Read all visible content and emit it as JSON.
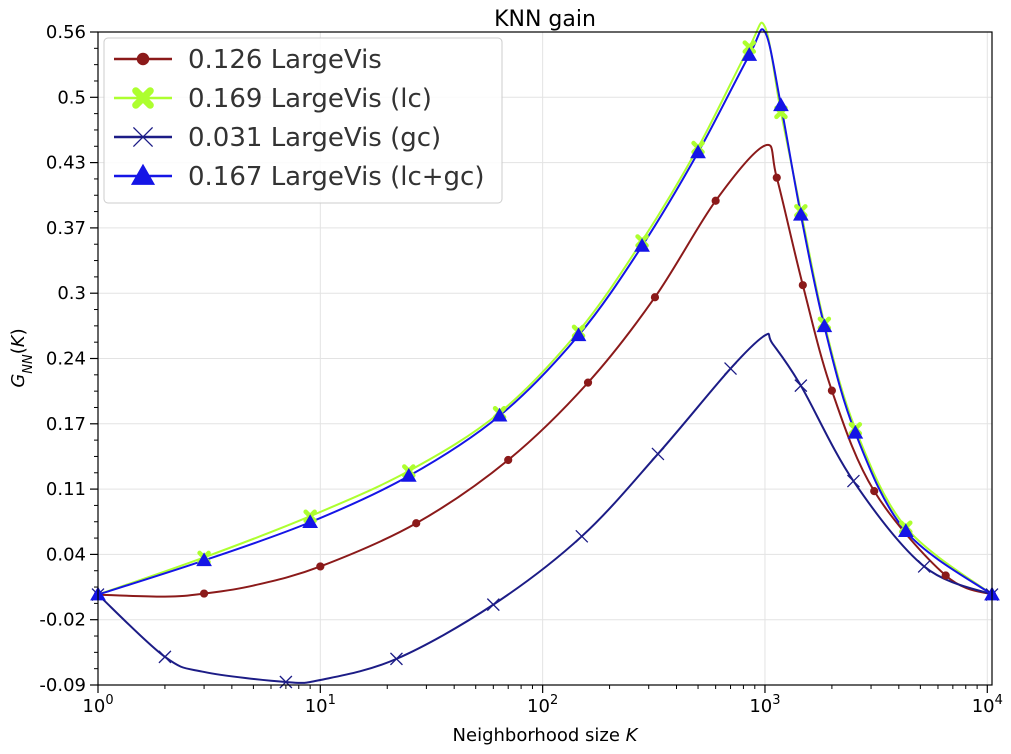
{
  "chart_data": {
    "type": "line",
    "title": "KNN gain",
    "xlabel": "Neighborhood size",
    "xlabel_var": "K",
    "ylabel": "G_NN(K)",
    "xscale": "log",
    "xlim": [
      1,
      10500
    ],
    "ylim": [
      -0.09,
      0.56
    ],
    "x_ticks": [
      {
        "value": 1,
        "base": "10",
        "exp": "0"
      },
      {
        "value": 10,
        "base": "10",
        "exp": "1"
      },
      {
        "value": 100,
        "base": "10",
        "exp": "2"
      },
      {
        "value": 1000,
        "base": "10",
        "exp": "3"
      },
      {
        "value": 10000,
        "base": "10",
        "exp": "4"
      }
    ],
    "y_ticks": [
      {
        "value": -0.09,
        "label": "-0.09"
      },
      {
        "value": -0.025,
        "label": "-0.02"
      },
      {
        "value": 0.04,
        "label": "0.04"
      },
      {
        "value": 0.105,
        "label": "0.11"
      },
      {
        "value": 0.17,
        "label": "0.17"
      },
      {
        "value": 0.235,
        "label": "0.24"
      },
      {
        "value": 0.3,
        "label": "0.3"
      },
      {
        "value": 0.365,
        "label": "0.37"
      },
      {
        "value": 0.43,
        "label": "0.43"
      },
      {
        "value": 0.495,
        "label": "0.5"
      },
      {
        "value": 0.56,
        "label": "0.56"
      }
    ],
    "grid": true,
    "legend_position": "top-left",
    "series": [
      {
        "name": "0.126 LargeVis",
        "color": "#8b1a1a",
        "marker": "circle",
        "x": [
          1,
          2,
          3,
          5,
          10,
          27,
          70,
          160,
          320,
          600,
          1000,
          1130,
          1480,
          2000,
          3100,
          6500,
          10500
        ],
        "y": [
          0,
          -0.002,
          0.001,
          0.009,
          0.028,
          0.071,
          0.134,
          0.211,
          0.296,
          0.392,
          0.447,
          0.415,
          0.308,
          0.203,
          0.103,
          0.019,
          0.0
        ],
        "markers": [
          [
            1,
            0
          ],
          [
            3,
            0.001
          ],
          [
            10,
            0.028
          ],
          [
            27,
            0.071
          ],
          [
            70,
            0.134
          ],
          [
            160,
            0.211
          ],
          [
            320,
            0.296
          ],
          [
            600,
            0.392
          ],
          [
            1130,
            0.415
          ],
          [
            1480,
            0.308
          ],
          [
            2000,
            0.203
          ],
          [
            3100,
            0.103
          ],
          [
            6500,
            0.019
          ],
          [
            10500,
            0.0
          ]
        ]
      },
      {
        "name": "0.169 LargeVis (lc)",
        "color": "#adff2f",
        "marker": "x-bold",
        "x": [
          1,
          3,
          9,
          25,
          64,
          145,
          280,
          500,
          850,
          1000,
          1180,
          1450,
          1850,
          2550,
          4300,
          10500
        ],
        "y": [
          0,
          0.037,
          0.078,
          0.123,
          0.181,
          0.262,
          0.352,
          0.445,
          0.545,
          0.565,
          0.48,
          0.382,
          0.27,
          0.165,
          0.067,
          0.0
        ],
        "markers": [
          [
            3,
            0.037
          ],
          [
            9,
            0.078
          ],
          [
            25,
            0.123
          ],
          [
            64,
            0.181
          ],
          [
            145,
            0.262
          ],
          [
            280,
            0.352
          ],
          [
            500,
            0.445
          ],
          [
            850,
            0.545
          ],
          [
            1180,
            0.48
          ],
          [
            1450,
            0.382
          ],
          [
            1850,
            0.27
          ],
          [
            2550,
            0.165
          ],
          [
            4300,
            0.067
          ]
        ]
      },
      {
        "name": "0.031 LargeVis (gc)",
        "color": "#1c1c86",
        "marker": "x",
        "x": [
          1,
          2,
          3,
          7,
          10,
          22,
          60,
          150,
          330,
          700,
          1000,
          1080,
          1450,
          2500,
          5200,
          10500
        ],
        "y": [
          0,
          -0.062,
          -0.077,
          -0.087,
          -0.085,
          -0.064,
          -0.01,
          0.058,
          0.14,
          0.225,
          0.258,
          0.25,
          0.208,
          0.113,
          0.028,
          0.0
        ],
        "markers": [
          [
            1,
            0
          ],
          [
            2,
            -0.062
          ],
          [
            7,
            -0.087
          ],
          [
            22,
            -0.064
          ],
          [
            60,
            -0.01
          ],
          [
            150,
            0.058
          ],
          [
            330,
            0.14
          ],
          [
            700,
            0.225
          ],
          [
            1450,
            0.208
          ],
          [
            2500,
            0.113
          ],
          [
            5200,
            0.028
          ],
          [
            10500,
            0.0
          ]
        ]
      },
      {
        "name": "0.167 LargeVis (lc+gc)",
        "color": "#1515e6",
        "marker": "triangle",
        "x": [
          1,
          3,
          9,
          25,
          64,
          145,
          280,
          500,
          850,
          1000,
          1180,
          1450,
          1850,
          2550,
          4300,
          10500
        ],
        "y": [
          0,
          0.034,
          0.072,
          0.118,
          0.178,
          0.258,
          0.347,
          0.44,
          0.537,
          0.56,
          0.487,
          0.378,
          0.267,
          0.161,
          0.063,
          0.0
        ],
        "markers": [
          [
            1,
            0
          ],
          [
            3,
            0.034
          ],
          [
            9,
            0.072
          ],
          [
            25,
            0.118
          ],
          [
            64,
            0.178
          ],
          [
            145,
            0.258
          ],
          [
            280,
            0.347
          ],
          [
            500,
            0.44
          ],
          [
            850,
            0.537
          ],
          [
            1180,
            0.487
          ],
          [
            1450,
            0.378
          ],
          [
            1850,
            0.267
          ],
          [
            2550,
            0.161
          ],
          [
            4300,
            0.063
          ],
          [
            10500,
            0.0
          ]
        ]
      }
    ]
  }
}
